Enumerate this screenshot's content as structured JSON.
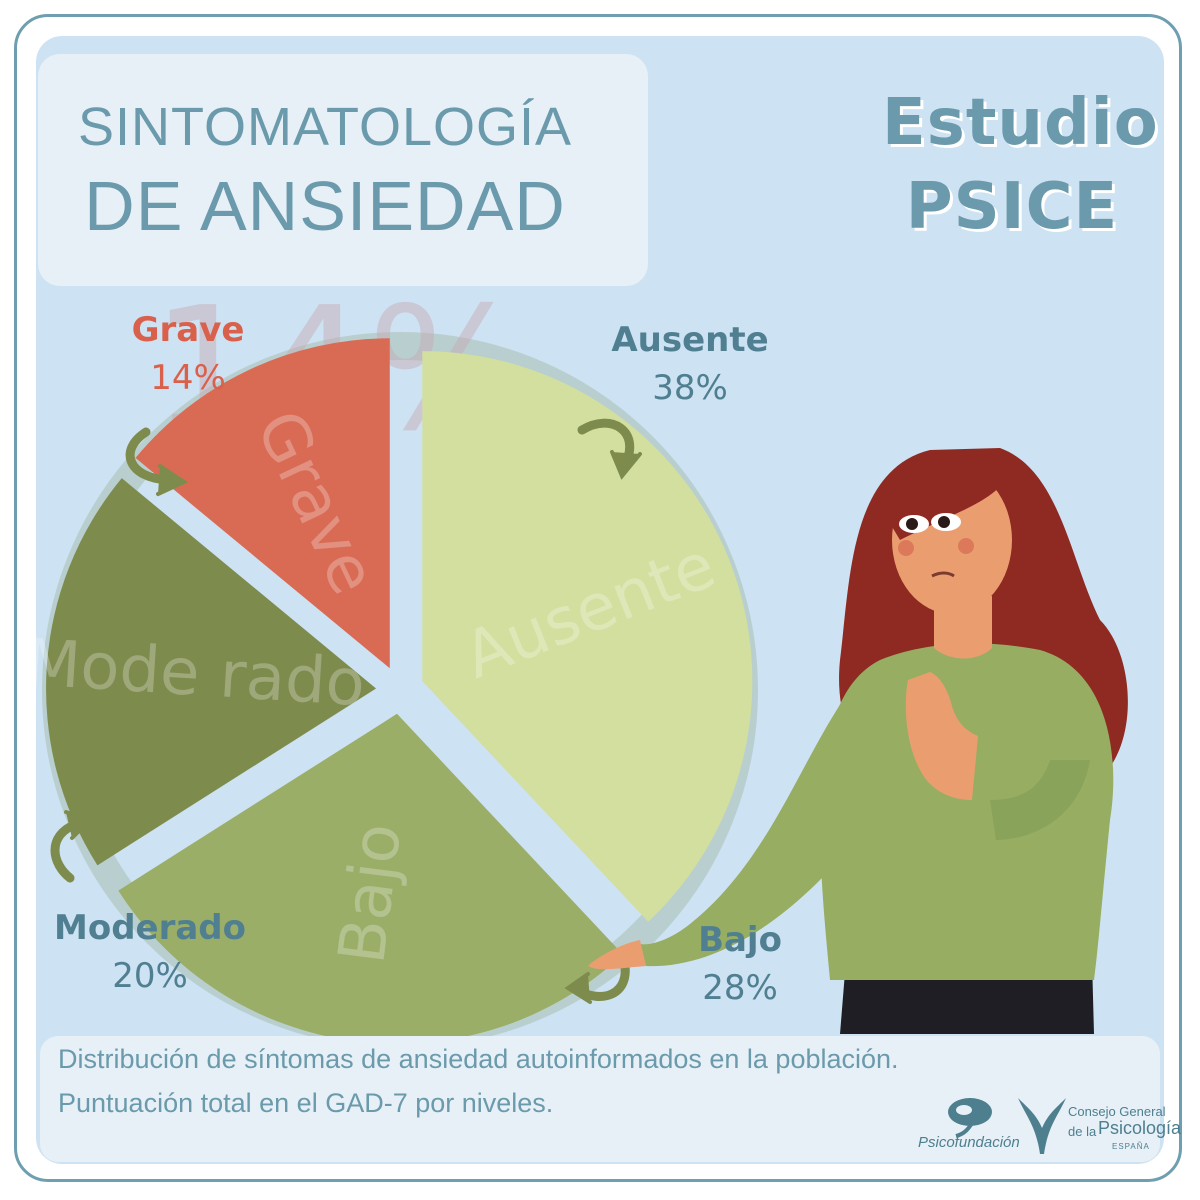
{
  "title": {
    "line1": "SINTOMATOLOGÍA",
    "line2": "DE ANSIEDAD"
  },
  "study": {
    "line1": "Estudio",
    "line2": "PSICE"
  },
  "chart_data": {
    "type": "pie",
    "title": "SINTOMATOLOGÍA DE ANSIEDAD",
    "unit": "%",
    "slices": [
      {
        "label": "Ausente",
        "value": 38,
        "value_label": "38%",
        "color": "#d2df9f",
        "watermark": "Ausente"
      },
      {
        "label": "Bajo",
        "value": 28,
        "value_label": "28%",
        "color": "#9aae68",
        "watermark": "Bajo"
      },
      {
        "label": "Moderado",
        "value": 20,
        "value_label": "20%",
        "color": "#7d8b4d",
        "watermark": "Mode rado"
      },
      {
        "label": "Grave",
        "value": 14,
        "value_label": "14%",
        "color": "#d96b55",
        "watermark": "Grave"
      }
    ],
    "highlight_value": "14%",
    "label_colors": {
      "Ausente": "#4f7f90",
      "Bajo": "#4f7f90",
      "Moderado": "#4f7f90",
      "Grave": "#d9614b"
    },
    "start_angle_deg": 0,
    "direction": "clockwise",
    "ring_color": "#b9cfcf"
  },
  "caption": {
    "line1": "Distribución de síntomas de ansiedad autoinformados en la población.",
    "line2": "Puntuación total en el GAD-7 por niveles."
  },
  "logos": {
    "psicofundacion": "Psicofundación",
    "consejo_line1": "Consejo General",
    "consejo_line2_prefix": "de la",
    "consejo_line2_main": "Psicología",
    "consejo_line3": "ESPAÑA"
  },
  "colors": {
    "background": "#cde2f2",
    "accent": "#6a9aab",
    "arrow": "#7d8b4d",
    "woman_sweater": "#96ad62",
    "woman_hair": "#8e2a22",
    "woman_skin": "#ea9e70"
  }
}
